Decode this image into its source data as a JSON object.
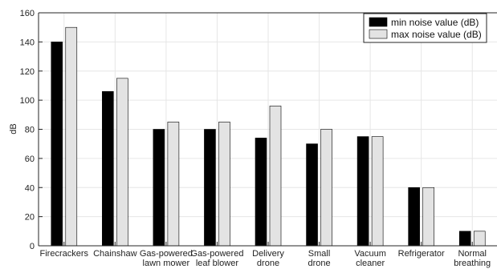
{
  "chart_data": {
    "type": "bar",
    "title": "",
    "xlabel": "",
    "ylabel": "dB",
    "ylim": [
      0,
      160
    ],
    "yticks": [
      0,
      20,
      40,
      60,
      80,
      100,
      120,
      140,
      160
    ],
    "grid": true,
    "legend_position": "top-right",
    "categories": [
      [
        "Firecrackers"
      ],
      [
        "Chainshaw"
      ],
      [
        "Gas-powered",
        "lawn mower"
      ],
      [
        "Gas-powered",
        "leaf blower"
      ],
      [
        "Delivery",
        "drone"
      ],
      [
        "Small",
        "drone"
      ],
      [
        "Vacuum",
        "cleaner"
      ],
      [
        "Refrigerator"
      ],
      [
        "Normal",
        "breathing"
      ]
    ],
    "series": [
      {
        "name": "min noise value (dB)",
        "color": "#000000",
        "values": [
          140,
          106,
          80,
          80,
          74,
          70,
          75,
          40,
          10
        ]
      },
      {
        "name": "max noise value (dB)",
        "color": "#e3e3e3",
        "values": [
          150,
          115,
          85,
          85,
          96,
          80,
          75,
          40,
          10
        ]
      }
    ]
  }
}
